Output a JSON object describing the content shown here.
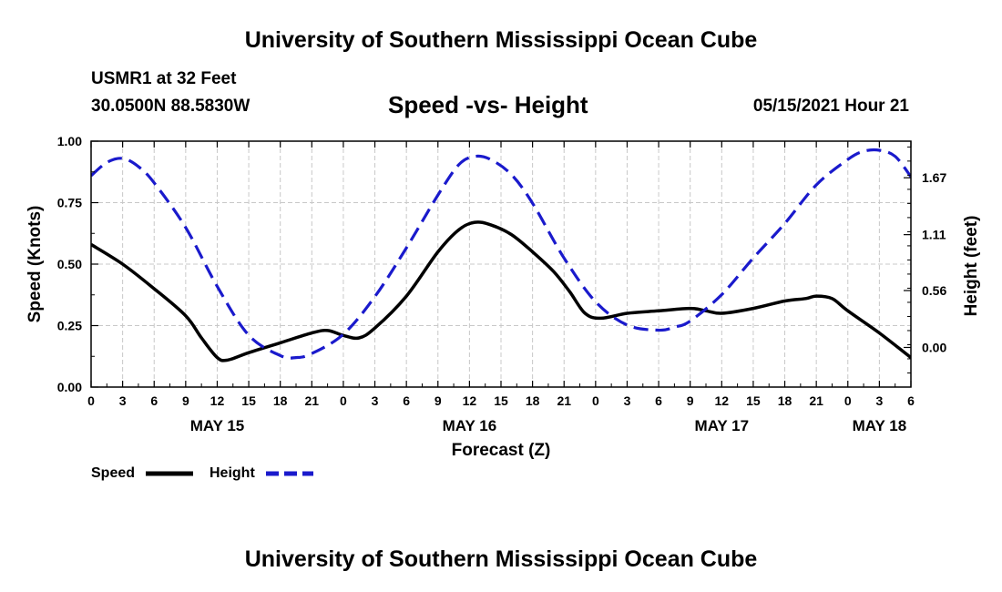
{
  "header": {
    "title": "University of Southern Mississippi Ocean Cube",
    "station": "USMR1 at 32 Feet",
    "coords": "30.0500N  88.5830W",
    "date": "05/15/2021 Hour 21"
  },
  "footer": {
    "title": "University of Southern Mississippi Ocean Cube"
  },
  "chart_data": {
    "type": "line",
    "title": "Speed -vs- Height",
    "xlabel": "Forecast (Z)",
    "ylabel_left": "Speed (Knots)",
    "ylabel_right": "Height (feet)",
    "grid": true,
    "x_unit": "hours from May 15 00Z",
    "xlim": [
      0,
      78
    ],
    "ylim_left": [
      0,
      1
    ],
    "ylim_right": [
      -0.39,
      2.03
    ],
    "x_ticks": [
      0,
      3,
      6,
      9,
      12,
      15,
      18,
      21,
      24,
      27,
      30,
      33,
      36,
      39,
      42,
      45,
      48,
      51,
      54,
      57,
      60,
      63,
      66,
      69,
      72,
      75,
      78
    ],
    "x_tick_labels": [
      "0",
      "3",
      "6",
      "9",
      "12",
      "15",
      "18",
      "21",
      "0",
      "3",
      "6",
      "9",
      "12",
      "15",
      "18",
      "21",
      "0",
      "3",
      "6",
      "9",
      "12",
      "15",
      "18",
      "21",
      "0",
      "3",
      "6"
    ],
    "left_ticks": [
      0,
      0.25,
      0.5,
      0.75,
      1.0
    ],
    "left_tick_labels": [
      "0.00",
      "0.25",
      "0.50",
      "0.75",
      "1.00"
    ],
    "right_ticks": [
      0,
      0.56,
      1.11,
      1.67
    ],
    "right_tick_labels": [
      "0.00",
      "0.56",
      "1.11",
      "1.67"
    ],
    "date_labels": [
      {
        "hour": 12,
        "label": "MAY 15"
      },
      {
        "hour": 36,
        "label": "MAY 16"
      },
      {
        "hour": 60,
        "label": "MAY 17"
      },
      {
        "hour": 75,
        "label": "MAY 18"
      }
    ],
    "legend": [
      {
        "label": "Speed",
        "color": "#000000",
        "dash": "solid"
      },
      {
        "label": "Height",
        "color": "#1a1acc",
        "dash": "dashed"
      }
    ],
    "series": [
      {
        "name": "Speed",
        "axis": "left",
        "color": "#000000",
        "x": [
          0,
          3,
          6,
          9,
          10.5,
          12,
          13,
          15,
          18,
          21,
          22.5,
          24,
          25.5,
          27,
          30,
          33,
          35,
          36.5,
          38,
          40,
          42,
          44,
          45.5,
          47,
          48.5,
          51,
          54,
          57,
          58.5,
          60,
          63,
          66,
          68,
          69,
          70.5,
          72,
          75,
          78
        ],
        "values": [
          0.58,
          0.5,
          0.4,
          0.29,
          0.2,
          0.12,
          0.11,
          0.14,
          0.18,
          0.22,
          0.23,
          0.21,
          0.2,
          0.24,
          0.37,
          0.55,
          0.64,
          0.67,
          0.66,
          0.62,
          0.55,
          0.47,
          0.39,
          0.3,
          0.28,
          0.3,
          0.31,
          0.32,
          0.31,
          0.3,
          0.32,
          0.35,
          0.36,
          0.37,
          0.36,
          0.31,
          0.22,
          0.12
        ]
      },
      {
        "name": "Height",
        "axis": "right",
        "color": "#1a1acc",
        "x": [
          0,
          1.5,
          3,
          4.5,
          6,
          9,
          12,
          15,
          18,
          19.5,
          21,
          24,
          27,
          30,
          33,
          35,
          36.5,
          38,
          40,
          42,
          45,
          48,
          51,
          54,
          55.5,
          57,
          60,
          63,
          66,
          69,
          72,
          73.5,
          75,
          76.5,
          78
        ],
        "values": [
          1.69,
          1.82,
          1.86,
          1.78,
          1.62,
          1.18,
          0.6,
          0.12,
          -0.08,
          -0.1,
          -0.06,
          0.13,
          0.5,
          0.98,
          1.5,
          1.8,
          1.88,
          1.85,
          1.7,
          1.42,
          0.88,
          0.45,
          0.22,
          0.17,
          0.2,
          0.26,
          0.52,
          0.88,
          1.22,
          1.6,
          1.85,
          1.93,
          1.94,
          1.88,
          1.68
        ]
      }
    ]
  }
}
